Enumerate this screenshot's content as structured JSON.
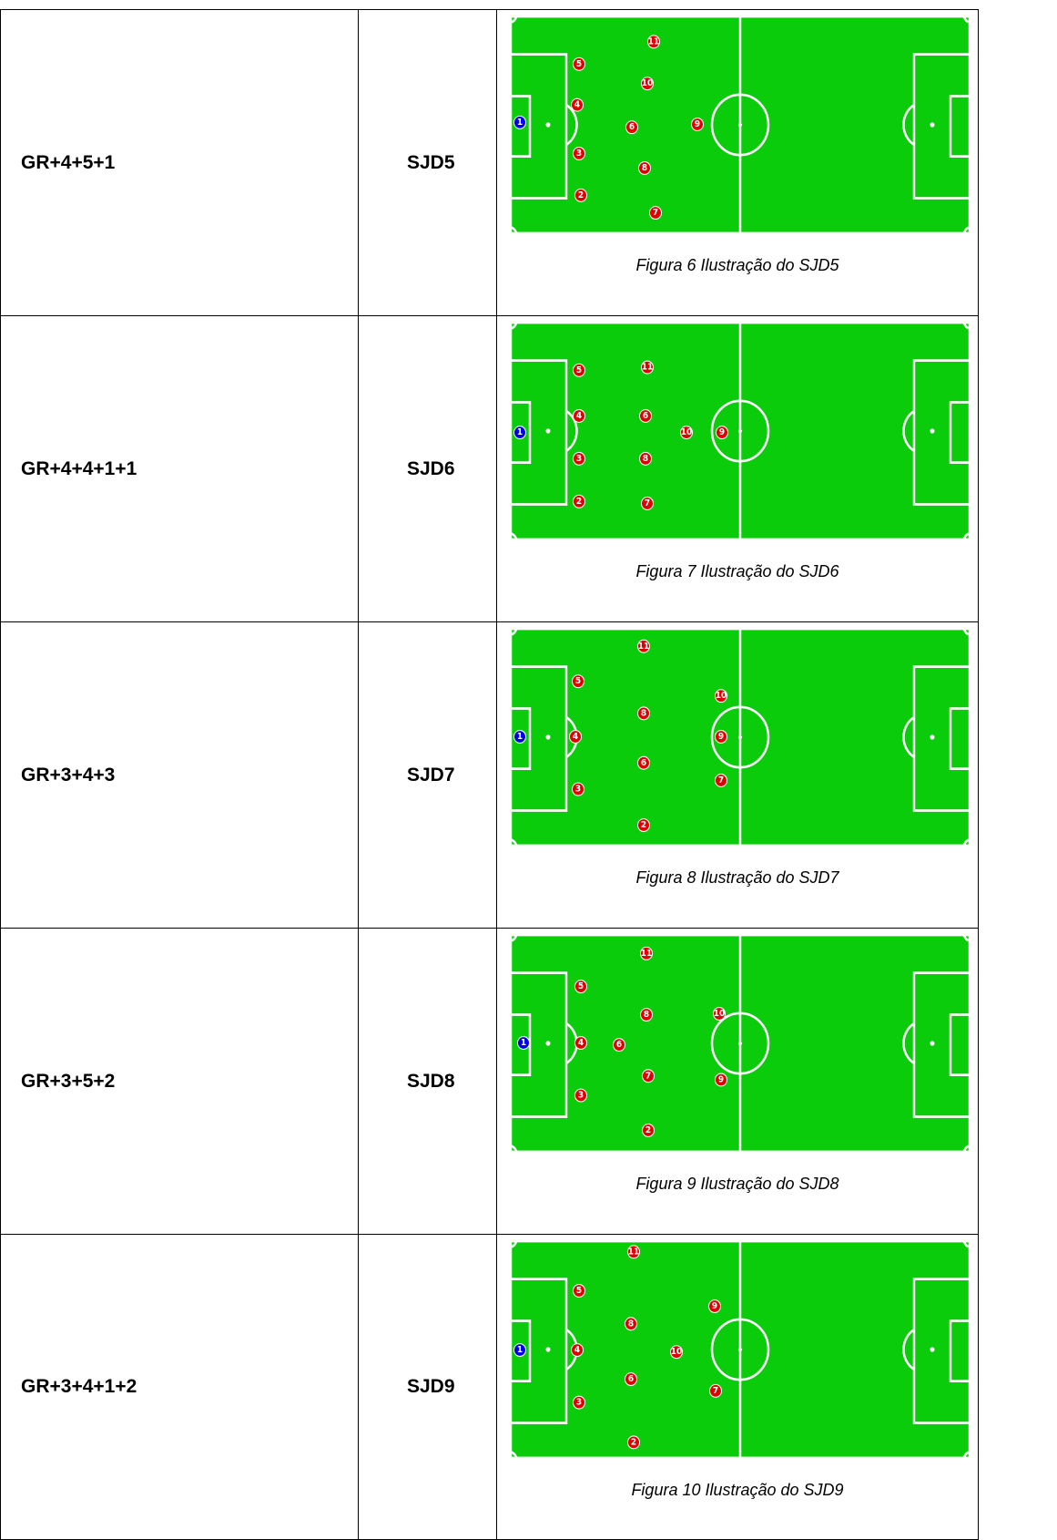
{
  "rows": [
    {
      "formation": "GR+4+5+1",
      "code": "SJD5",
      "players": [
        1,
        2,
        3,
        4,
        5,
        6,
        7,
        8,
        9,
        10,
        11
      ],
      "caption": "Figura 6 Ilustração do SJD5"
    },
    {
      "formation": "GR+4+4+1+1",
      "code": "SJD6",
      "players": [
        1,
        2,
        3,
        4,
        5,
        6,
        7,
        8,
        9,
        10,
        11
      ],
      "caption": "Figura 7 Ilustração do SJD6"
    },
    {
      "formation": "GR+3+4+3",
      "code": "SJD7",
      "players": [
        1,
        2,
        3,
        4,
        5,
        6,
        7,
        8,
        9,
        10,
        11
      ],
      "caption": "Figura 8 Ilustração do SJD7"
    },
    {
      "formation": "GR+3+5+2",
      "code": "SJD8",
      "players": [
        1,
        2,
        3,
        4,
        5,
        6,
        7,
        8,
        9,
        10,
        11
      ],
      "caption": "Figura 9 Ilustração do SJD8"
    },
    {
      "formation": "GR+3+4+1+2",
      "code": "SJD9",
      "players": [
        1,
        2,
        3,
        4,
        5,
        6,
        7,
        8,
        9,
        10,
        11
      ],
      "caption": "Figura 10 Ilustração do SJD9"
    }
  ]
}
